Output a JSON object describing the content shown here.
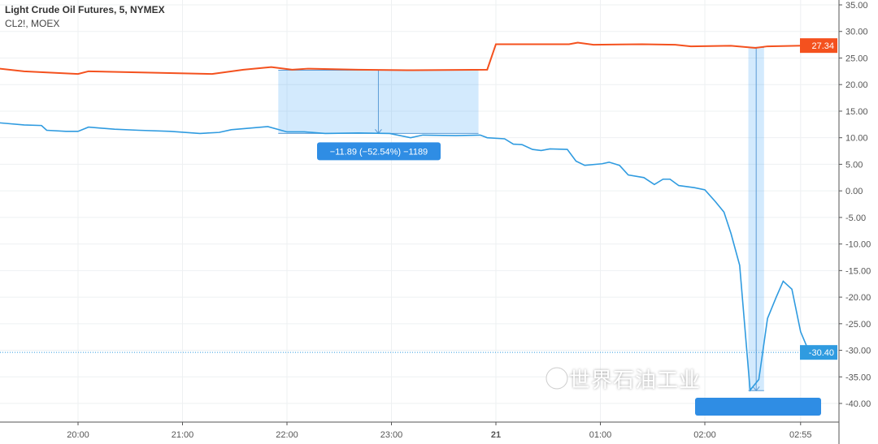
{
  "header": {
    "title": "Light Crude Oil Futures, 5, NYMEX",
    "subtitle": "CL2!, MOEX"
  },
  "watermark": "世界石油工业",
  "chart_data": {
    "type": "line",
    "x_unit": "minutes relative to 20:00",
    "ylim": [
      -42,
      36
    ],
    "yticks": [
      "35.00",
      "30.00",
      "25.00",
      "20.00",
      "15.00",
      "10.00",
      "5.00",
      "0.00",
      "-5.00",
      "-10.00",
      "-15.00",
      "-20.00",
      "-25.00",
      "-30.00",
      "-35.00",
      "-40.00"
    ],
    "ytick_values": [
      35,
      30,
      25,
      20,
      15,
      10,
      5,
      0,
      -5,
      -10,
      -15,
      -20,
      -25,
      -30,
      -35,
      -40
    ],
    "xticks": [
      {
        "label": "20:00",
        "t": 0
      },
      {
        "label": "21:00",
        "t": 60
      },
      {
        "label": "22:00",
        "t": 120
      },
      {
        "label": "23:00",
        "t": 180
      },
      {
        "label": "21",
        "t": 240
      },
      {
        "label": "01:00",
        "t": 300
      },
      {
        "label": "02:00",
        "t": 360
      },
      {
        "label": "02:55",
        "t": 415
      }
    ],
    "series": [
      {
        "name": "CL2!, MOEX",
        "color": "#f4511e",
        "last_label": "27.34",
        "points": [
          [
            -45,
            23
          ],
          [
            -31,
            22.5
          ],
          [
            0,
            22
          ],
          [
            6,
            22.5
          ],
          [
            77,
            22
          ],
          [
            95,
            22.8
          ],
          [
            111,
            23.3
          ],
          [
            123,
            22.8
          ],
          [
            132,
            23
          ],
          [
            161,
            22.8
          ],
          [
            189,
            22.7
          ],
          [
            235,
            22.8
          ],
          [
            240,
            27.6
          ],
          [
            282,
            27.6
          ],
          [
            287,
            27.9
          ],
          [
            296,
            27.5
          ],
          [
            324,
            27.6
          ],
          [
            343,
            27.5
          ],
          [
            352,
            27.2
          ],
          [
            375,
            27.3
          ],
          [
            389,
            26.9
          ],
          [
            396,
            27.2
          ],
          [
            413,
            27.3
          ],
          [
            420,
            27.34
          ]
        ]
      },
      {
        "name": "Light Crude Oil Futures, 5, NYMEX",
        "color": "#2f9be0",
        "last_label": "-30.40",
        "points": [
          [
            -45,
            12.8
          ],
          [
            -31,
            12.4
          ],
          [
            -21,
            12.3
          ],
          [
            -18,
            11.4
          ],
          [
            -7,
            11.2
          ],
          [
            0,
            11.2
          ],
          [
            6,
            12
          ],
          [
            21,
            11.6
          ],
          [
            35,
            11.4
          ],
          [
            53,
            11.2
          ],
          [
            70,
            10.8
          ],
          [
            81,
            11
          ],
          [
            88,
            11.5
          ],
          [
            109,
            12.1
          ],
          [
            120,
            11.1
          ],
          [
            130,
            11.1
          ],
          [
            142,
            10.8
          ],
          [
            161,
            10.9
          ],
          [
            179,
            10.8
          ],
          [
            191,
            10
          ],
          [
            198,
            10.5
          ],
          [
            217,
            10.4
          ],
          [
            231,
            10.5
          ],
          [
            235,
            10
          ],
          [
            245,
            9.8
          ],
          [
            250,
            8.8
          ],
          [
            255,
            8.7
          ],
          [
            261,
            7.8
          ],
          [
            266,
            7.6
          ],
          [
            271,
            7.9
          ],
          [
            281,
            7.8
          ],
          [
            286,
            5.6
          ],
          [
            291,
            4.8
          ],
          [
            301,
            5.1
          ],
          [
            305,
            5.4
          ],
          [
            311,
            4.8
          ],
          [
            316,
            3
          ],
          [
            325,
            2.5
          ],
          [
            331,
            1.2
          ],
          [
            336,
            2.2
          ],
          [
            340,
            2.2
          ],
          [
            345,
            1
          ],
          [
            354,
            0.6
          ],
          [
            360,
            0.2
          ],
          [
            366,
            -2
          ],
          [
            371,
            -4
          ],
          [
            375,
            -8
          ],
          [
            380,
            -14
          ],
          [
            386,
            -37.5
          ],
          [
            391,
            -35.5
          ],
          [
            396,
            -24
          ],
          [
            401,
            -20
          ],
          [
            405,
            -17
          ],
          [
            410,
            -18.5
          ],
          [
            415,
            -26.5
          ],
          [
            420,
            -30.4
          ]
        ]
      }
    ],
    "measures": [
      {
        "t0": 115,
        "t1": 230,
        "from": 22.7,
        "to": 10.81,
        "label": "−11.89 (−52.54%) −1189"
      },
      {
        "t0": 385,
        "t1": 394,
        "from": 27.0,
        "to": -37.6,
        "label": ""
      }
    ],
    "price_line": -30.4
  }
}
